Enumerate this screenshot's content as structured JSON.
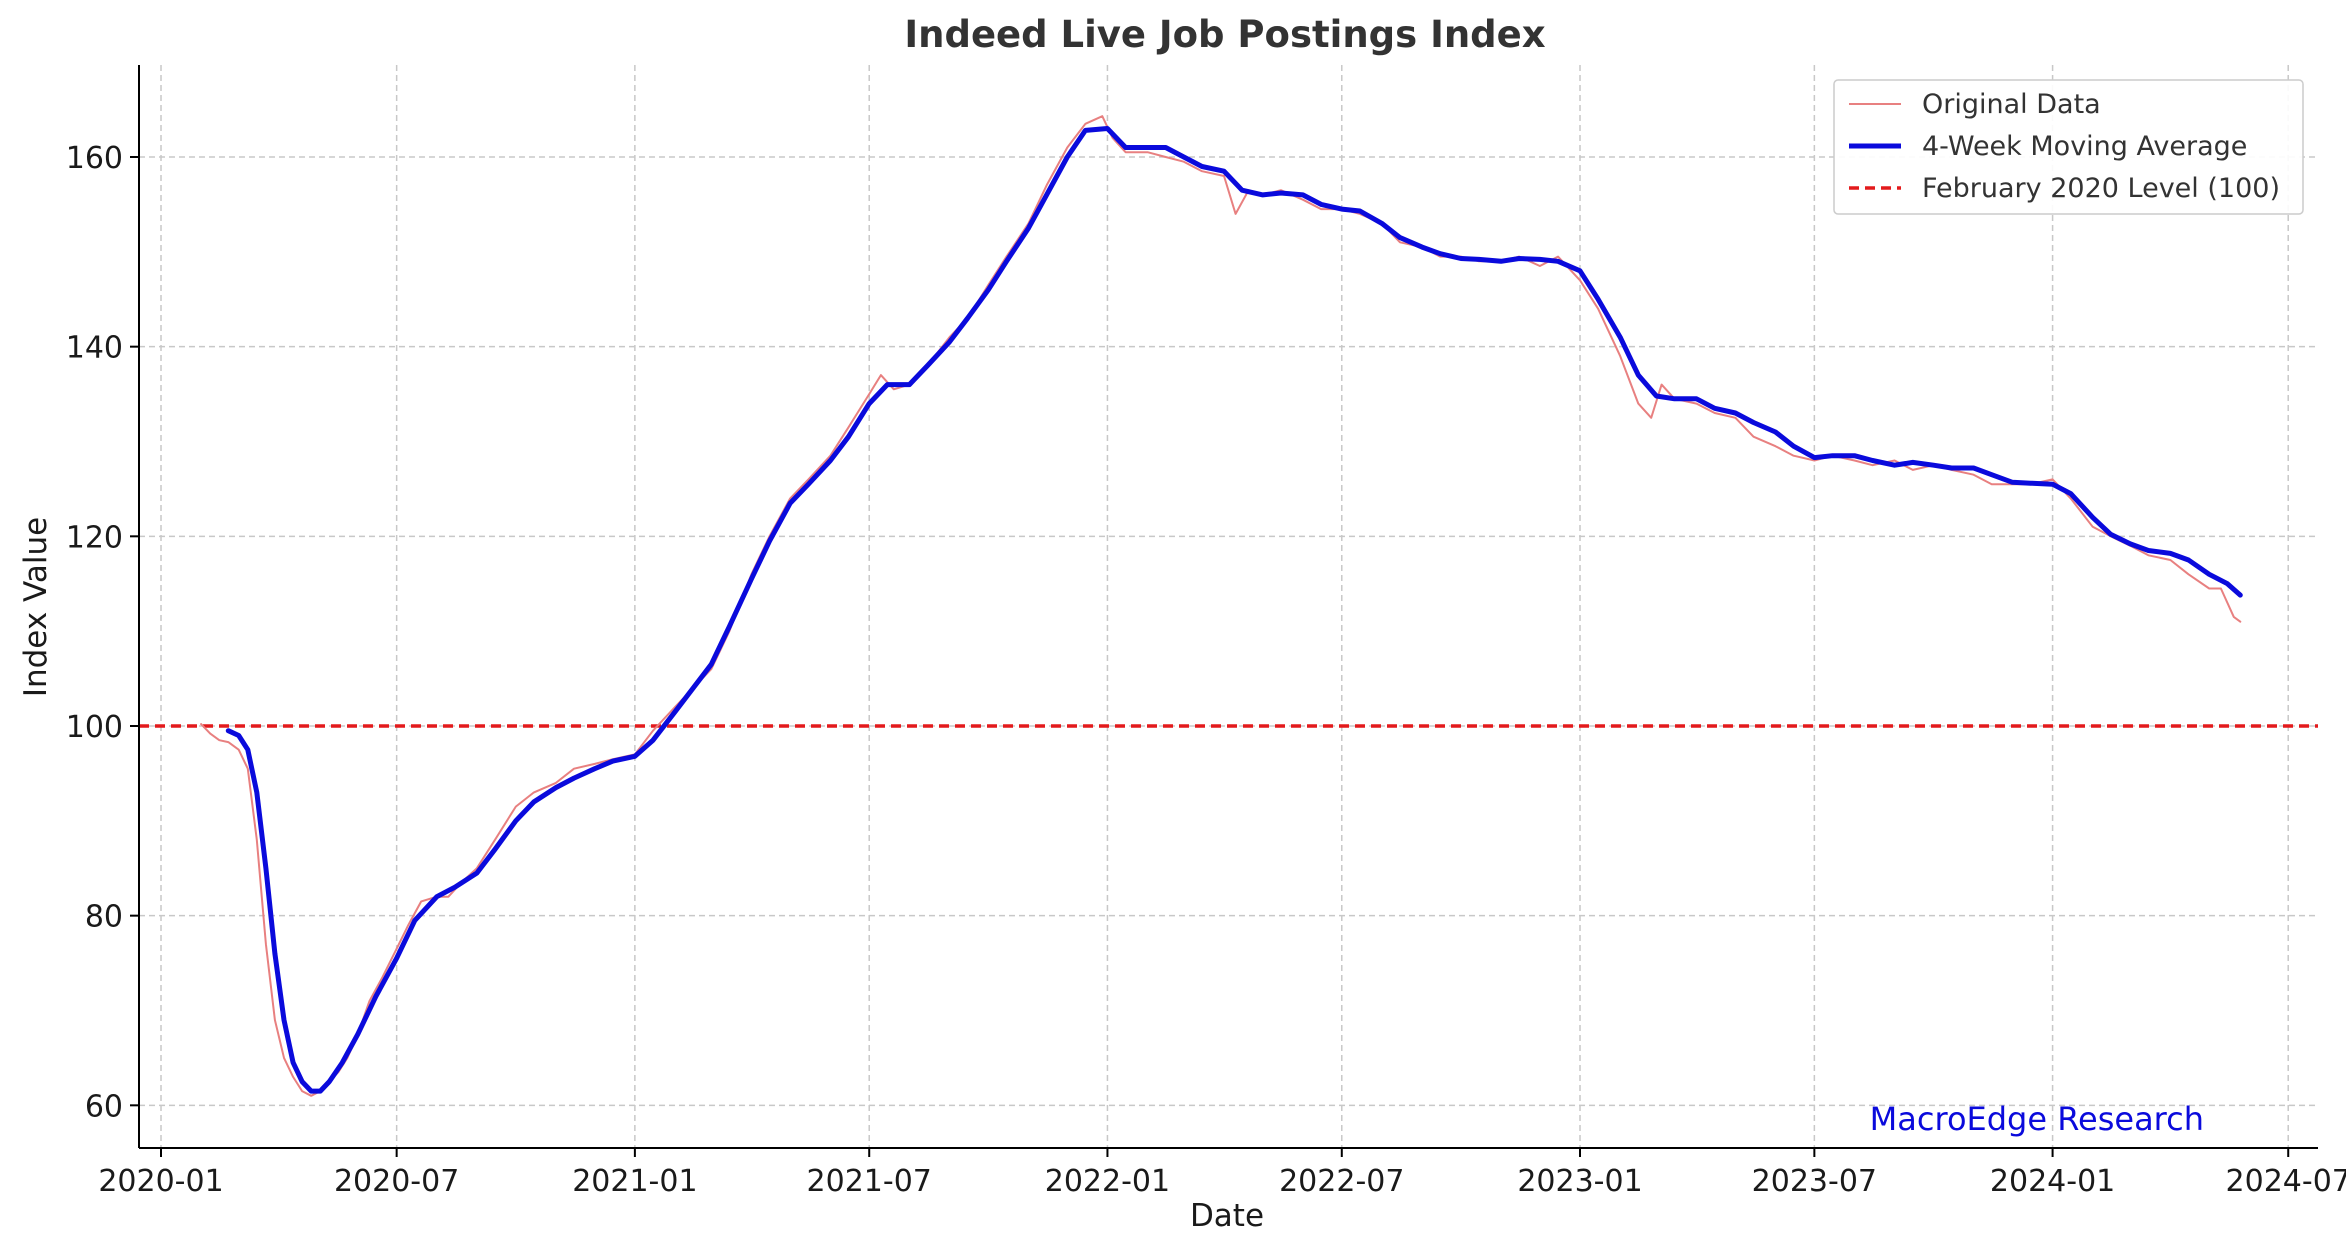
{
  "chart_data": {
    "type": "line",
    "title": "Indeed Live Job Postings Index",
    "xlabel": "Date",
    "ylabel": "Index Value",
    "xlim": [
      "2019-12-15",
      "2024-07-24"
    ],
    "ylim": [
      55.5,
      169.7
    ],
    "x_ticks": [
      "2020-01",
      "2020-07",
      "2021-01",
      "2021-07",
      "2022-01",
      "2022-07",
      "2023-01",
      "2023-07",
      "2024-01",
      "2024-07"
    ],
    "y_ticks": [
      60,
      80,
      100,
      120,
      140,
      160
    ],
    "grid": true,
    "legend_position": "top-right",
    "watermark": "MacroEdge Research",
    "reference_line": {
      "name": "February 2020 Level (100)",
      "value": 100,
      "color": "#e31a1c",
      "style": "dashed"
    },
    "series": [
      {
        "name": "Original Data",
        "color": "#e88080",
        "points": [
          [
            "2020-02-01",
            100.2
          ],
          [
            "2020-02-08",
            99.2
          ],
          [
            "2020-02-15",
            98.5
          ],
          [
            "2020-02-22",
            98.3
          ],
          [
            "2020-03-01",
            97.5
          ],
          [
            "2020-03-08",
            95.5
          ],
          [
            "2020-03-15",
            88
          ],
          [
            "2020-03-22",
            77
          ],
          [
            "2020-03-29",
            69
          ],
          [
            "2020-04-05",
            65
          ],
          [
            "2020-04-12",
            63
          ],
          [
            "2020-04-19",
            61.5
          ],
          [
            "2020-04-26",
            61
          ],
          [
            "2020-05-03",
            61.5
          ],
          [
            "2020-05-10",
            62.5
          ],
          [
            "2020-05-17",
            63.5
          ],
          [
            "2020-05-24",
            65
          ],
          [
            "2020-06-01",
            67.5
          ],
          [
            "2020-06-10",
            71
          ],
          [
            "2020-06-20",
            73.5
          ],
          [
            "2020-07-01",
            76.5
          ],
          [
            "2020-07-10",
            79
          ],
          [
            "2020-07-20",
            81.5
          ],
          [
            "2020-08-01",
            82
          ],
          [
            "2020-08-10",
            82
          ],
          [
            "2020-08-20",
            83.5
          ],
          [
            "2020-09-01",
            85
          ],
          [
            "2020-09-15",
            88
          ],
          [
            "2020-10-01",
            91.5
          ],
          [
            "2020-10-15",
            93
          ],
          [
            "2020-11-01",
            94
          ],
          [
            "2020-11-15",
            95.5
          ],
          [
            "2020-12-01",
            96
          ],
          [
            "2020-12-15",
            96.5
          ],
          [
            "2021-01-01",
            97
          ],
          [
            "2021-01-15",
            99.5
          ],
          [
            "2021-02-01",
            102
          ],
          [
            "2021-02-15",
            104
          ],
          [
            "2021-03-01",
            106
          ],
          [
            "2021-03-15",
            110
          ],
          [
            "2021-04-01",
            116
          ],
          [
            "2021-04-15",
            120
          ],
          [
            "2021-05-01",
            124
          ],
          [
            "2021-05-15",
            126
          ],
          [
            "2021-06-01",
            128.5
          ],
          [
            "2021-06-15",
            131.5
          ],
          [
            "2021-07-01",
            135
          ],
          [
            "2021-07-10",
            137
          ],
          [
            "2021-07-20",
            135.5
          ],
          [
            "2021-08-01",
            136
          ],
          [
            "2021-08-15",
            138
          ],
          [
            "2021-09-01",
            141
          ],
          [
            "2021-09-15",
            143
          ],
          [
            "2021-10-01",
            146.5
          ],
          [
            "2021-10-15",
            149.5
          ],
          [
            "2021-11-01",
            153
          ],
          [
            "2021-11-15",
            157
          ],
          [
            "2021-12-01",
            161
          ],
          [
            "2021-12-15",
            163.5
          ],
          [
            "2021-12-28",
            164.3
          ],
          [
            "2022-01-05",
            162
          ],
          [
            "2022-01-15",
            160.5
          ],
          [
            "2022-02-01",
            160.5
          ],
          [
            "2022-02-15",
            160
          ],
          [
            "2022-03-01",
            159.5
          ],
          [
            "2022-03-15",
            158.5
          ],
          [
            "2022-04-01",
            158
          ],
          [
            "2022-04-10",
            154
          ],
          [
            "2022-04-20",
            156.5
          ],
          [
            "2022-05-01",
            156
          ],
          [
            "2022-05-15",
            156.5
          ],
          [
            "2022-06-01",
            155.5
          ],
          [
            "2022-06-15",
            154.5
          ],
          [
            "2022-07-01",
            154.5
          ],
          [
            "2022-07-15",
            154
          ],
          [
            "2022-08-01",
            153
          ],
          [
            "2022-08-15",
            151
          ],
          [
            "2022-09-01",
            150.5
          ],
          [
            "2022-09-15",
            149.5
          ],
          [
            "2022-10-01",
            149.5
          ],
          [
            "2022-10-15",
            149
          ],
          [
            "2022-11-01",
            149
          ],
          [
            "2022-11-15",
            149.5
          ],
          [
            "2022-12-01",
            148.5
          ],
          [
            "2022-12-15",
            149.5
          ],
          [
            "2023-01-01",
            147
          ],
          [
            "2023-01-15",
            144
          ],
          [
            "2023-02-01",
            139
          ],
          [
            "2023-02-15",
            134
          ],
          [
            "2023-02-25",
            132.5
          ],
          [
            "2023-03-05",
            136
          ],
          [
            "2023-03-15",
            134.5
          ],
          [
            "2023-04-01",
            134
          ],
          [
            "2023-04-15",
            133
          ],
          [
            "2023-05-01",
            132.5
          ],
          [
            "2023-05-15",
            130.5
          ],
          [
            "2023-06-01",
            129.5
          ],
          [
            "2023-06-15",
            128.5
          ],
          [
            "2023-07-01",
            128
          ],
          [
            "2023-07-15",
            128.5
          ],
          [
            "2023-08-01",
            128
          ],
          [
            "2023-08-15",
            127.5
          ],
          [
            "2023-09-01",
            128
          ],
          [
            "2023-09-15",
            127
          ],
          [
            "2023-10-01",
            127.5
          ],
          [
            "2023-10-15",
            127
          ],
          [
            "2023-11-01",
            126.5
          ],
          [
            "2023-11-15",
            125.5
          ],
          [
            "2023-12-01",
            125.5
          ],
          [
            "2023-12-15",
            125.5
          ],
          [
            "2024-01-01",
            126
          ],
          [
            "2024-01-15",
            124
          ],
          [
            "2024-02-01",
            121
          ],
          [
            "2024-02-15",
            120
          ],
          [
            "2024-03-01",
            119
          ],
          [
            "2024-03-15",
            118
          ],
          [
            "2024-04-01",
            117.5
          ],
          [
            "2024-04-15",
            116
          ],
          [
            "2024-05-01",
            114.5
          ],
          [
            "2024-05-10",
            114.5
          ],
          [
            "2024-05-20",
            111.5
          ],
          [
            "2024-05-25",
            111
          ]
        ]
      },
      {
        "name": "4-Week Moving Average",
        "color": "#0a0adc",
        "points": [
          [
            "2020-02-22",
            99.5
          ],
          [
            "2020-03-01",
            99
          ],
          [
            "2020-03-08",
            97.5
          ],
          [
            "2020-03-15",
            93
          ],
          [
            "2020-03-22",
            85
          ],
          [
            "2020-03-29",
            76
          ],
          [
            "2020-04-05",
            69
          ],
          [
            "2020-04-12",
            64.5
          ],
          [
            "2020-04-19",
            62.5
          ],
          [
            "2020-04-26",
            61.5
          ],
          [
            "2020-05-03",
            61.5
          ],
          [
            "2020-05-10",
            62.5
          ],
          [
            "2020-05-20",
            64.5
          ],
          [
            "2020-06-01",
            67.5
          ],
          [
            "2020-06-15",
            71.5
          ],
          [
            "2020-07-01",
            75.5
          ],
          [
            "2020-07-15",
            79.5
          ],
          [
            "2020-08-01",
            82
          ],
          [
            "2020-08-15",
            83
          ],
          [
            "2020-09-01",
            84.5
          ],
          [
            "2020-09-15",
            87
          ],
          [
            "2020-10-01",
            90
          ],
          [
            "2020-10-15",
            92
          ],
          [
            "2020-11-01",
            93.5
          ],
          [
            "2020-11-15",
            94.5
          ],
          [
            "2020-12-01",
            95.5
          ],
          [
            "2020-12-15",
            96.3
          ],
          [
            "2021-01-01",
            96.8
          ],
          [
            "2021-01-15",
            98.5
          ],
          [
            "2021-02-01",
            101.5
          ],
          [
            "2021-02-15",
            104
          ],
          [
            "2021-03-01",
            106.5
          ],
          [
            "2021-03-15",
            110.5
          ],
          [
            "2021-04-01",
            115.5
          ],
          [
            "2021-04-15",
            119.5
          ],
          [
            "2021-05-01",
            123.5
          ],
          [
            "2021-05-15",
            125.5
          ],
          [
            "2021-06-01",
            128
          ],
          [
            "2021-06-15",
            130.5
          ],
          [
            "2021-07-01",
            134
          ],
          [
            "2021-07-15",
            136
          ],
          [
            "2021-08-01",
            136
          ],
          [
            "2021-08-15",
            138
          ],
          [
            "2021-09-01",
            140.5
          ],
          [
            "2021-09-15",
            143
          ],
          [
            "2021-10-01",
            146
          ],
          [
            "2021-10-15",
            149
          ],
          [
            "2021-11-01",
            152.5
          ],
          [
            "2021-11-15",
            156
          ],
          [
            "2021-12-01",
            160
          ],
          [
            "2021-12-15",
            162.8
          ],
          [
            "2022-01-01",
            163
          ],
          [
            "2022-01-15",
            161
          ],
          [
            "2022-02-01",
            161
          ],
          [
            "2022-02-15",
            161
          ],
          [
            "2022-03-01",
            160
          ],
          [
            "2022-03-15",
            159
          ],
          [
            "2022-04-01",
            158.5
          ],
          [
            "2022-04-15",
            156.5
          ],
          [
            "2022-05-01",
            156
          ],
          [
            "2022-05-15",
            156.2
          ],
          [
            "2022-06-01",
            156
          ],
          [
            "2022-06-15",
            155
          ],
          [
            "2022-07-01",
            154.5
          ],
          [
            "2022-07-15",
            154.3
          ],
          [
            "2022-08-01",
            153
          ],
          [
            "2022-08-15",
            151.5
          ],
          [
            "2022-09-01",
            150.5
          ],
          [
            "2022-09-15",
            149.8
          ],
          [
            "2022-10-01",
            149.3
          ],
          [
            "2022-10-15",
            149.2
          ],
          [
            "2022-11-01",
            149
          ],
          [
            "2022-11-15",
            149.3
          ],
          [
            "2022-12-01",
            149.2
          ],
          [
            "2022-12-15",
            149
          ],
          [
            "2023-01-01",
            148
          ],
          [
            "2023-01-15",
            145
          ],
          [
            "2023-02-01",
            141
          ],
          [
            "2023-02-15",
            137
          ],
          [
            "2023-03-01",
            134.8
          ],
          [
            "2023-03-15",
            134.5
          ],
          [
            "2023-04-01",
            134.5
          ],
          [
            "2023-04-15",
            133.5
          ],
          [
            "2023-05-01",
            133
          ],
          [
            "2023-05-15",
            132
          ],
          [
            "2023-06-01",
            131
          ],
          [
            "2023-06-15",
            129.5
          ],
          [
            "2023-07-01",
            128.3
          ],
          [
            "2023-07-15",
            128.5
          ],
          [
            "2023-08-01",
            128.5
          ],
          [
            "2023-08-15",
            128
          ],
          [
            "2023-09-01",
            127.5
          ],
          [
            "2023-09-15",
            127.8
          ],
          [
            "2023-10-01",
            127.5
          ],
          [
            "2023-10-15",
            127.2
          ],
          [
            "2023-11-01",
            127.2
          ],
          [
            "2023-11-15",
            126.5
          ],
          [
            "2023-12-01",
            125.7
          ],
          [
            "2023-12-15",
            125.6
          ],
          [
            "2024-01-01",
            125.5
          ],
          [
            "2024-01-15",
            124.5
          ],
          [
            "2024-02-01",
            122
          ],
          [
            "2024-02-15",
            120.2
          ],
          [
            "2024-03-01",
            119.2
          ],
          [
            "2024-03-15",
            118.5
          ],
          [
            "2024-04-01",
            118.2
          ],
          [
            "2024-04-15",
            117.5
          ],
          [
            "2024-05-01",
            116
          ],
          [
            "2024-05-15",
            115
          ],
          [
            "2024-05-25",
            113.8
          ]
        ]
      }
    ]
  }
}
